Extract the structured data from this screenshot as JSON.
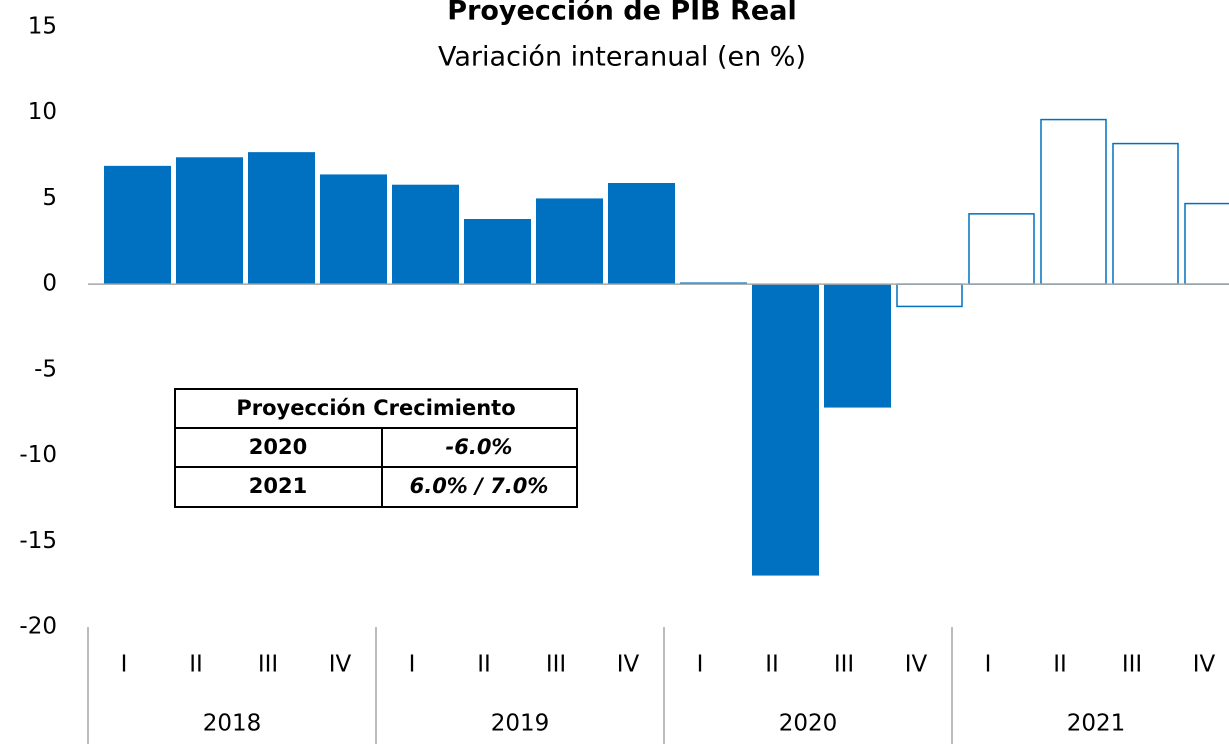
{
  "chart_data": {
    "type": "bar",
    "title": "Proyección de PIB Real",
    "subtitle": "Variación interanual (en %)",
    "categories": [
      "I",
      "II",
      "III",
      "IV",
      "I",
      "II",
      "III",
      "IV",
      "I",
      "II",
      "III",
      "IV",
      "I",
      "II",
      "III",
      "IV"
    ],
    "group_labels": [
      "2018",
      "2019",
      "2020",
      "2021"
    ],
    "values": [
      6.9,
      7.4,
      7.7,
      6.4,
      5.8,
      3.8,
      5.0,
      5.9,
      0.1,
      -17.0,
      -7.2,
      -1.3,
      4.1,
      9.6,
      8.2,
      4.7
    ],
    "filled": [
      true,
      true,
      true,
      true,
      true,
      true,
      true,
      true,
      true,
      true,
      true,
      false,
      false,
      false,
      false,
      false
    ],
    "color": "#0070c0",
    "ylim": [
      -20,
      15
    ],
    "yticks": [
      -20,
      -15,
      -10,
      -5,
      0,
      5,
      10,
      15
    ],
    "inset_table": {
      "title": "Proyección Crecimiento",
      "rows": [
        [
          "2020",
          "-6.0%"
        ],
        [
          "2021",
          "6.0% / 7.0%"
        ]
      ]
    }
  }
}
